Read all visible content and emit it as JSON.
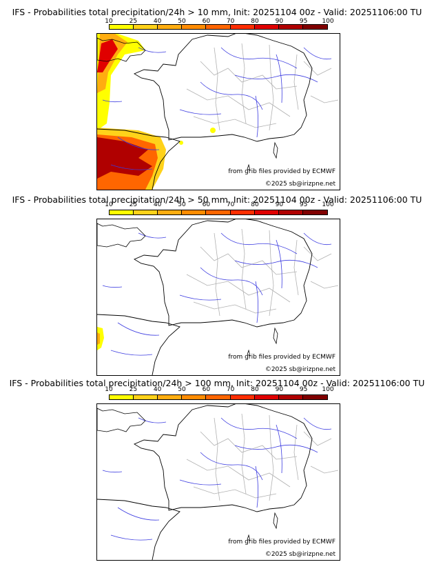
{
  "legend": {
    "ticks": [
      "10",
      "25",
      "40",
      "50",
      "60",
      "70",
      "80",
      "90",
      "95",
      "100"
    ],
    "colors": [
      "#ffff00",
      "#ffd21a",
      "#ffad10",
      "#ff8c00",
      "#ff6600",
      "#ff2e00",
      "#e00000",
      "#b00000",
      "#800000"
    ]
  },
  "panels": [
    {
      "title": "IFS - Probabilities total precipitation/24h > 10 mm, Init: 20251104 00z - Valid: 20251106:00 TU",
      "credit_source": "from grib files provided by ECMWF",
      "credit_copyright": "©2025 sb@irizpne.net",
      "precip_coverage": "large"
    },
    {
      "title": "IFS - Probabilities total precipitation/24h > 50 mm, Init: 20251104 00z - Valid: 20251106:00 TU",
      "credit_source": "from grib files provided by ECMWF",
      "credit_copyright": "©2025 sb@irizpne.net",
      "precip_coverage": "small"
    },
    {
      "title": "IFS - Probabilities total precipitation/24h > 100 mm, Init: 20251104 00z - Valid: 20251106:00 TU",
      "credit_source": "from grib files provided by ECMWF",
      "credit_copyright": "©2025 sb@irizpne.net",
      "precip_coverage": "none"
    }
  ]
}
